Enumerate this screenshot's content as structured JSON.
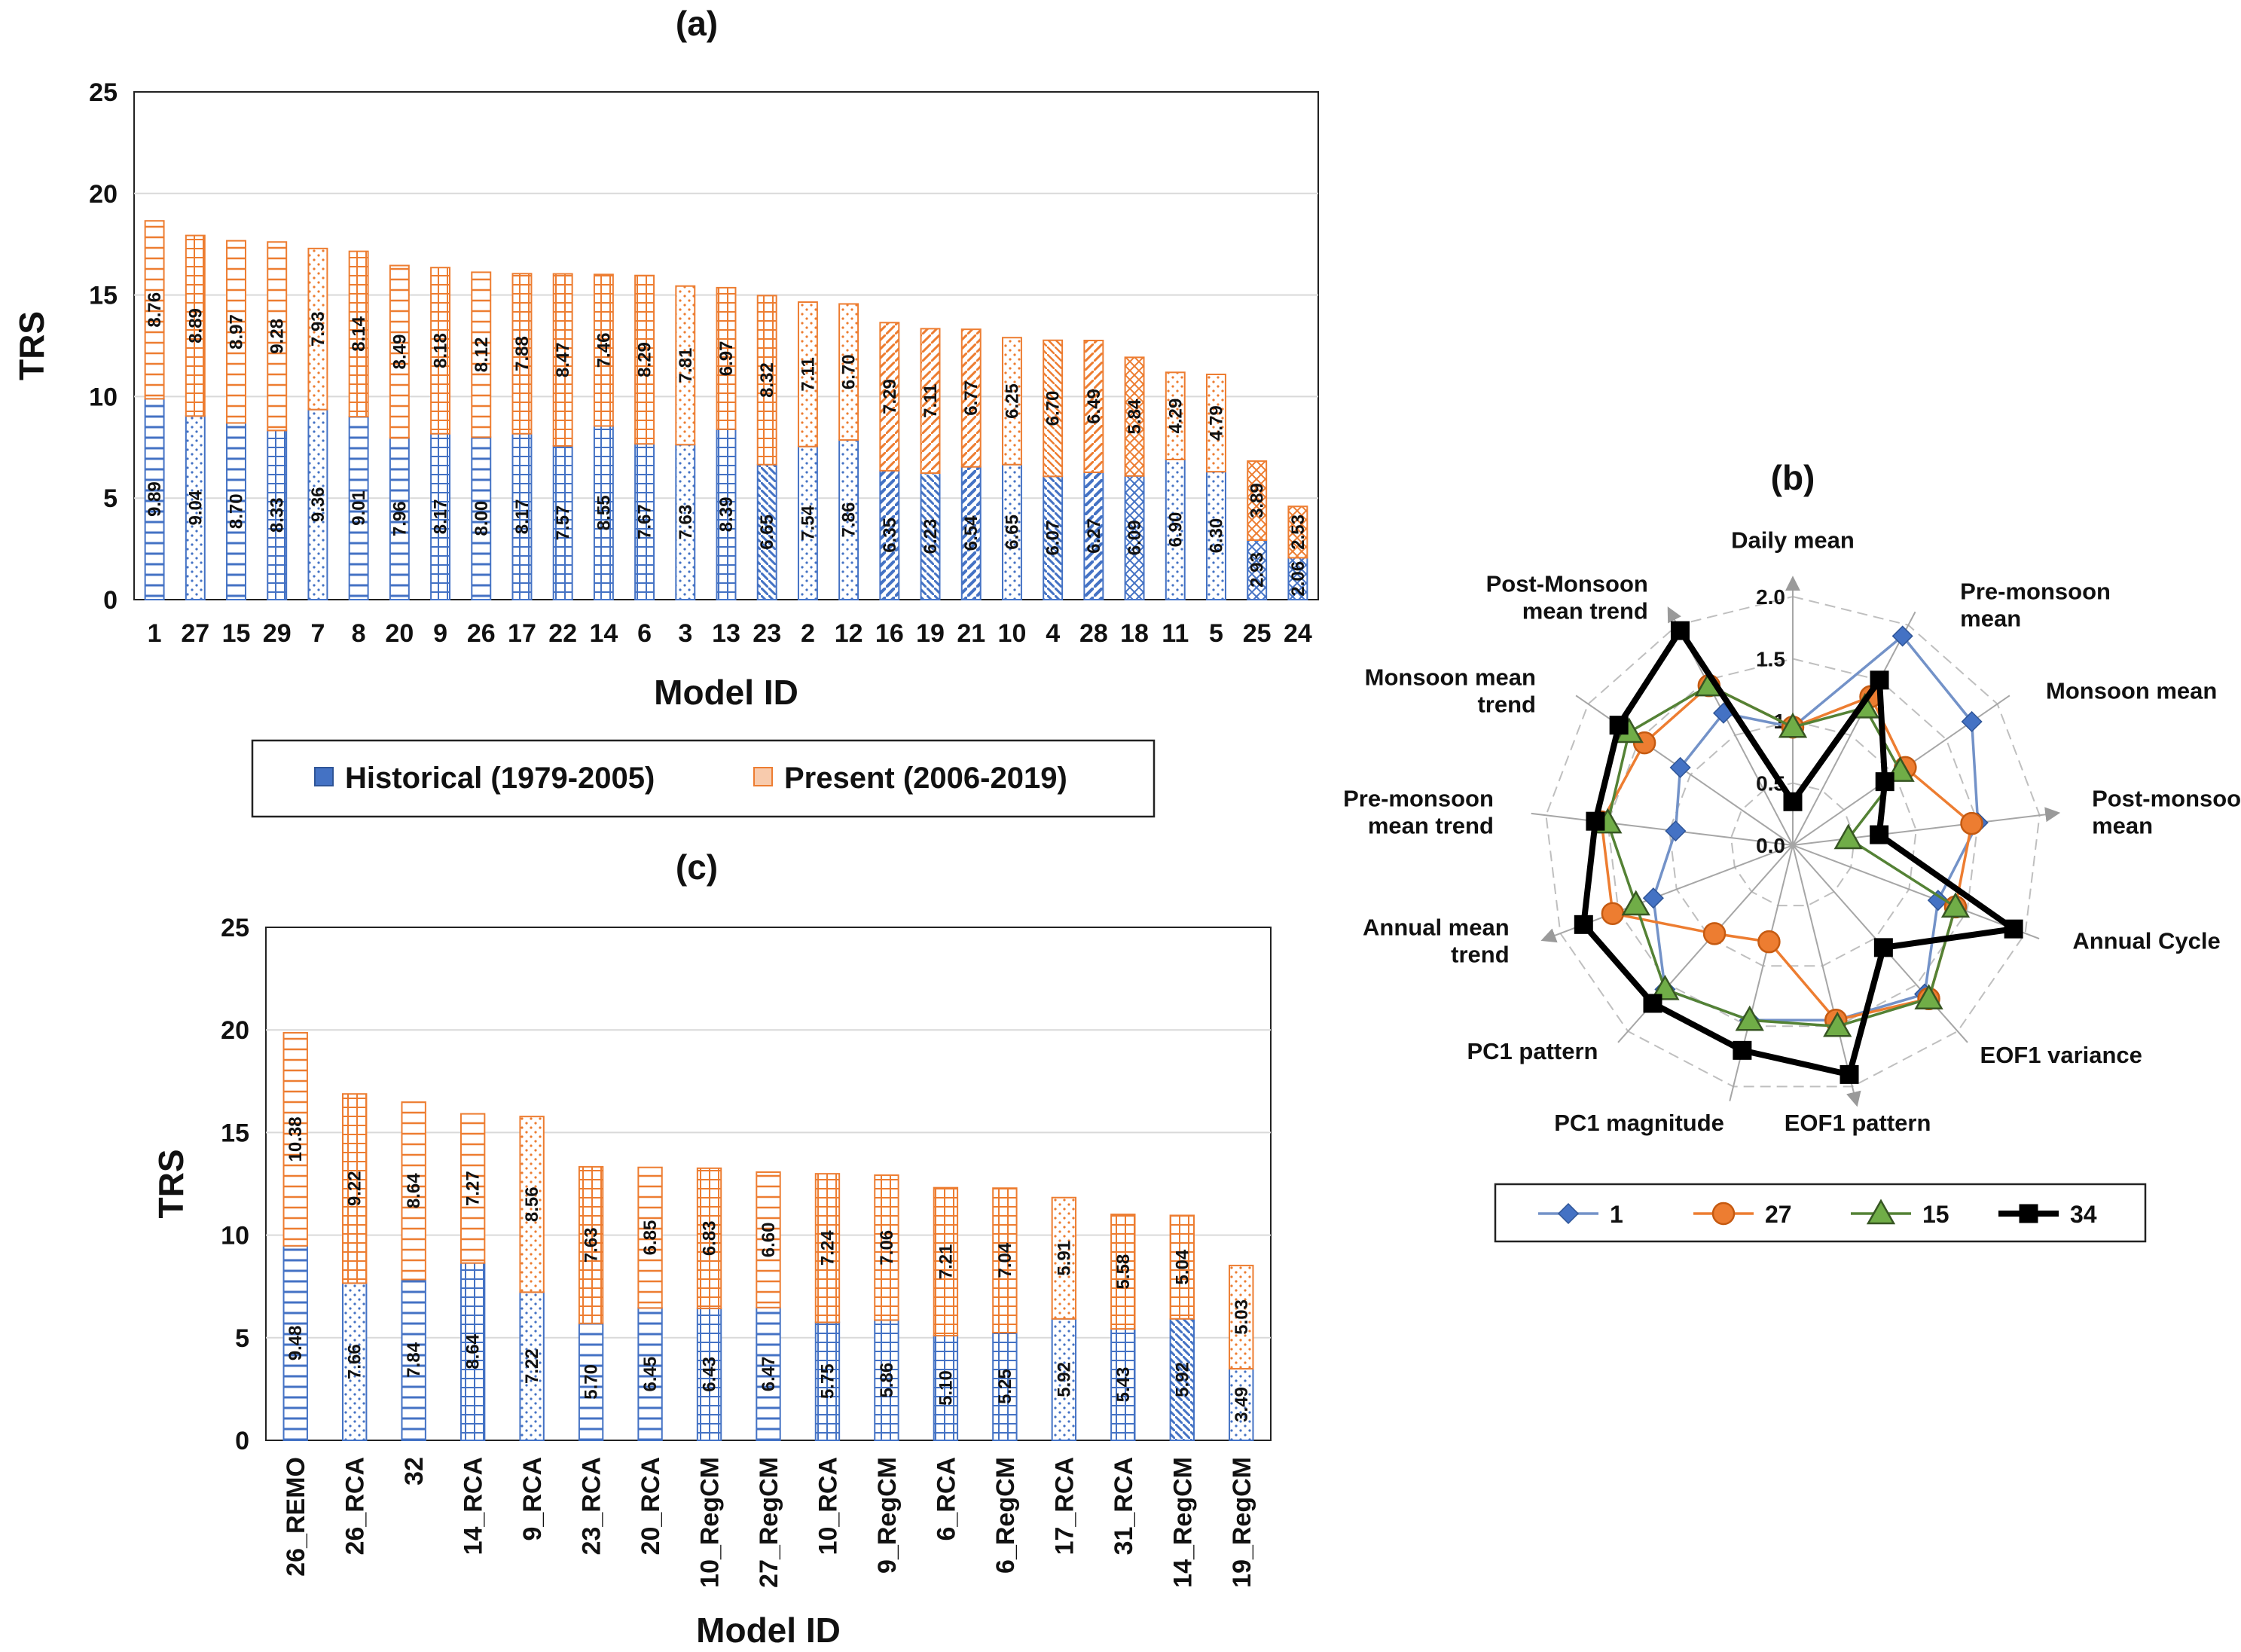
{
  "chart_data": [
    {
      "panel": "(a)",
      "type": "bar",
      "stacked": true,
      "title": "(a)",
      "xlabel": "Model ID",
      "ylabel": "TRS",
      "ylim": [
        0,
        25
      ],
      "yticks": [
        "0",
        "5",
        "10",
        "15",
        "20",
        "25"
      ],
      "categories": [
        "1",
        "27",
        "15",
        "29",
        "7",
        "8",
        "20",
        "9",
        "26",
        "17",
        "22",
        "14",
        "6",
        "3",
        "13",
        "23",
        "2",
        "12",
        "16",
        "19",
        "21",
        "10",
        "4",
        "28",
        "18",
        "11",
        "5",
        "25",
        "24"
      ],
      "series": [
        {
          "name": "Historical (1979-2005)",
          "color": "#4472c4",
          "values": [
            9.89,
            9.04,
            8.7,
            8.33,
            9.36,
            9.01,
            7.96,
            8.17,
            8.0,
            8.17,
            7.57,
            8.55,
            7.67,
            7.63,
            8.39,
            6.65,
            7.54,
            7.86,
            6.35,
            6.23,
            6.54,
            6.65,
            6.07,
            6.27,
            6.09,
            6.9,
            6.3,
            2.93,
            2.06
          ],
          "labels": [
            "9.89",
            "9.04",
            "8.70",
            "8.33",
            "9.36",
            "9.01",
            "7.96",
            "8.17",
            "8.00",
            "8.17",
            "7.57",
            "8.55",
            "7.67",
            "7.63",
            "8.39",
            "6.65",
            "7.54",
            "7.86",
            "6.35",
            "6.23",
            "6.54",
            "6.65",
            "6.07",
            "6.27",
            "6.09",
            "6.90",
            "6.30",
            "2.93",
            "2.06"
          ]
        },
        {
          "name": "Present (2006-2019)",
          "color": "#ed7d31",
          "values": [
            8.76,
            8.89,
            8.97,
            9.28,
            7.93,
            8.14,
            8.49,
            8.18,
            8.12,
            7.88,
            8.47,
            7.46,
            8.29,
            7.81,
            6.97,
            8.32,
            7.11,
            6.7,
            7.29,
            7.11,
            6.77,
            6.25,
            6.7,
            6.49,
            5.84,
            4.29,
            4.79,
            3.89,
            2.53
          ],
          "labels": [
            "8.76",
            "8.89",
            "8.97",
            "9.28",
            "7.93",
            "8.14",
            "8.49",
            "8.18",
            "8.12",
            "7.88",
            "8.47",
            "7.46",
            "8.29",
            "7.81",
            "6.97",
            "8.32",
            "7.11",
            "6.70",
            "7.29",
            "7.11",
            "6.77",
            "6.25",
            "6.70",
            "6.49",
            "5.84",
            "4.29",
            "4.79",
            "3.89",
            "2.53"
          ]
        }
      ],
      "legend": {
        "placement": "below",
        "labels": [
          "Historical (1979-2005)",
          "Present (2006-2019)"
        ]
      }
    },
    {
      "panel": "(b)",
      "type": "radar",
      "title": "(b)",
      "axes": [
        "Daily mean",
        "Pre-monsoon mean",
        "Monsoon mean",
        "Post-monsoon mean",
        "Annual Cycle",
        "EOF1 variance",
        "EOF1 pattern",
        "PC1 magnitude",
        "PC1 pattern",
        "Annual mean trend",
        "Pre-monsoon mean trend",
        "Monsoon mean trend",
        "Post-Monsoon mean trend"
      ],
      "axis_label_lines": [
        [
          "Daily mean"
        ],
        [
          "Pre-monsoon",
          "mean"
        ],
        [
          "Monsoon mean"
        ],
        [
          "Post-monsoon",
          "mean"
        ],
        [
          "Annual Cycle"
        ],
        [
          "EOF1 variance"
        ],
        [
          "EOF1 pattern"
        ],
        [
          "PC1 magnitude"
        ],
        [
          "PC1 pattern"
        ],
        [
          "Annual mean",
          "trend"
        ],
        [
          "Pre-monsoon",
          "mean trend"
        ],
        [
          "Monsoon mean",
          "trend"
        ],
        [
          "Post-Monsoon",
          "mean trend"
        ]
      ],
      "rlim": [
        0,
        2.0
      ],
      "rticks": [
        "0.0",
        "0.5",
        "1",
        "1.5",
        "2.0"
      ],
      "series": [
        {
          "name": "1",
          "color": "#7392c8",
          "marker": "diamond",
          "values": [
            0.95,
            1.9,
            1.75,
            1.5,
            1.25,
            1.6,
            1.45,
            1.45,
            1.55,
            1.2,
            0.95,
            1.1,
            1.2
          ]
        },
        {
          "name": "27",
          "color": "#ed7d31",
          "marker": "circle",
          "values": [
            0.95,
            1.35,
            1.1,
            1.45,
            1.4,
            1.65,
            1.45,
            0.8,
            0.95,
            1.55,
            1.55,
            1.45,
            1.45
          ]
        },
        {
          "name": "15",
          "color": "#548235",
          "marker": "triangle",
          "values": [
            0.95,
            1.25,
            1.05,
            0.45,
            1.4,
            1.65,
            1.5,
            1.45,
            1.55,
            1.35,
            1.5,
            1.6,
            1.45
          ]
        },
        {
          "name": "34",
          "color": "#000000",
          "marker": "square",
          "values": [
            0.35,
            1.5,
            0.9,
            0.7,
            1.9,
            1.1,
            1.9,
            1.7,
            1.7,
            1.8,
            1.6,
            1.7,
            1.95
          ]
        }
      ],
      "legend": {
        "placement": "below",
        "labels": [
          "1",
          "27",
          "15",
          "34"
        ]
      }
    },
    {
      "panel": "(c)",
      "type": "bar",
      "stacked": true,
      "title": "(c)",
      "xlabel": "Model ID",
      "ylabel": "TRS",
      "ylim": [
        0,
        25
      ],
      "yticks": [
        "0",
        "5",
        "10",
        "15",
        "20",
        "25"
      ],
      "categories": [
        "26_REMO",
        "26_RCA",
        "32",
        "14_RCA",
        "9_RCA",
        "23_RCA",
        "20_RCA",
        "10_RegCM",
        "27_RegCM",
        "10_RCA",
        "9_RegCM",
        "6_RCA",
        "6_RegCM",
        "17_RCA",
        "31_RCA",
        "14_RegCM",
        "19_RegCM"
      ],
      "series": [
        {
          "name": "Historical (1979-2005)",
          "color": "#4472c4",
          "values": [
            9.48,
            7.66,
            7.84,
            8.64,
            7.22,
            5.7,
            6.45,
            6.43,
            6.47,
            5.75,
            5.86,
            5.1,
            5.25,
            5.92,
            5.43,
            5.92,
            3.49
          ],
          "labels": [
            "9.48",
            "7.66",
            "7.84",
            "8.64",
            "7.22",
            "5.70",
            "6.45",
            "6.43",
            "6.47",
            "5.75",
            "5.86",
            "5.10",
            "5.25",
            "5.92",
            "5.43",
            "5.92",
            "3.49"
          ]
        },
        {
          "name": "Present (2006-2019)",
          "color": "#ed7d31",
          "values": [
            10.38,
            9.22,
            8.64,
            7.27,
            8.56,
            7.63,
            6.85,
            6.83,
            6.6,
            7.24,
            7.06,
            7.21,
            7.04,
            5.91,
            5.58,
            5.04,
            5.03
          ],
          "labels": [
            "10.38",
            "9.22",
            "8.64",
            "7.27",
            "8.56",
            "7.63",
            "6.85",
            "6.83",
            "6.60",
            "7.24",
            "7.06",
            "7.21",
            "7.04",
            "5.91",
            "5.58",
            "5.04",
            "5.03"
          ]
        }
      ]
    }
  ]
}
